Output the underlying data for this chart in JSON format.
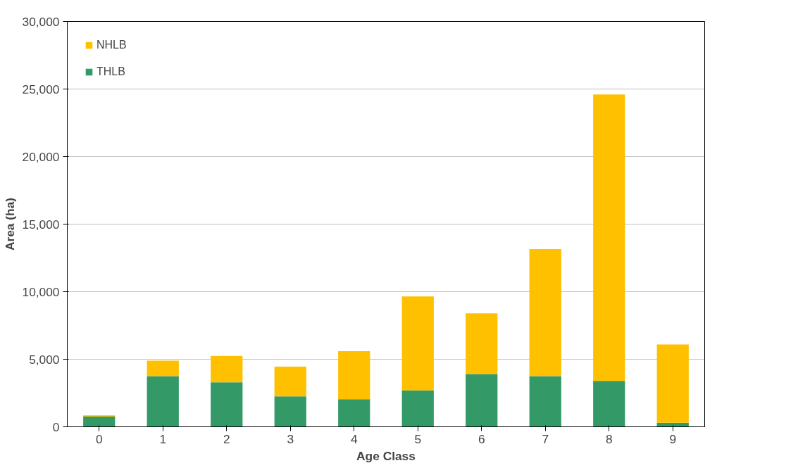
{
  "chart_data": {
    "type": "bar",
    "stacked": true,
    "xlabel": "Age Class",
    "ylabel": "Area (ha)",
    "categories": [
      "0",
      "1",
      "2",
      "3",
      "4",
      "5",
      "6",
      "7",
      "8",
      "9"
    ],
    "series": [
      {
        "name": "THLB",
        "color": "#339966",
        "values": [
          750,
          3750,
          3300,
          2250,
          2050,
          2700,
          3900,
          3750,
          3400,
          300
        ]
      },
      {
        "name": "NHLB",
        "color": "#ffc000",
        "values": [
          100,
          1150,
          1950,
          2200,
          3550,
          6950,
          4500,
          9400,
          21200,
          5800
        ]
      }
    ],
    "ylim": [
      0,
      30000
    ],
    "yticks": [
      {
        "value": 0,
        "label": "0"
      },
      {
        "value": 5000,
        "label": "5,000"
      },
      {
        "value": 10000,
        "label": "10,000"
      },
      {
        "value": 15000,
        "label": "15,000"
      },
      {
        "value": 20000,
        "label": "20,000"
      },
      {
        "value": 25000,
        "label": "25,000"
      },
      {
        "value": 30000,
        "label": "30,000"
      }
    ],
    "grid": "y",
    "legend": "top left"
  }
}
